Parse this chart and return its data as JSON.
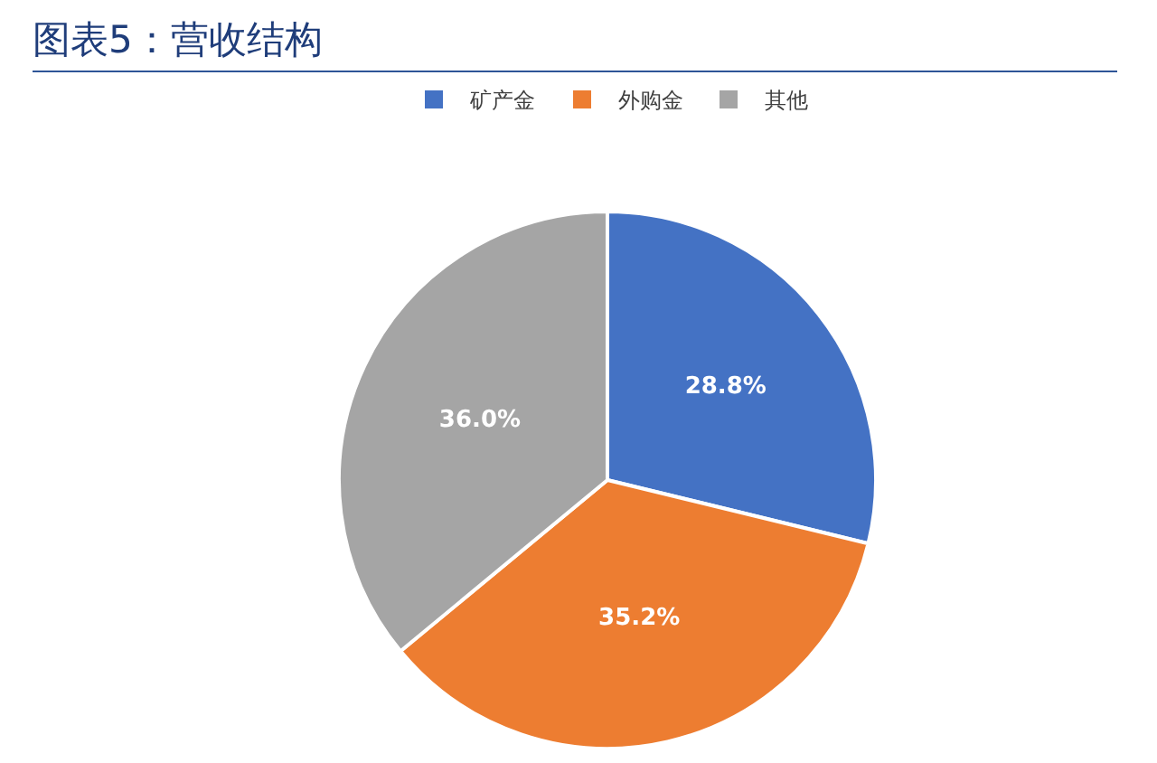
{
  "chart_data": {
    "type": "pie",
    "title": "图表5：营收结构",
    "categories": [
      "矿产金",
      "外购金",
      "其他"
    ],
    "values": [
      28.8,
      35.2,
      36.0
    ],
    "value_labels": [
      "28.8%",
      "35.2%",
      "36.0%"
    ],
    "colors": [
      "#4472c4",
      "#ed7d31",
      "#a5a5a5"
    ],
    "legend": "top"
  }
}
